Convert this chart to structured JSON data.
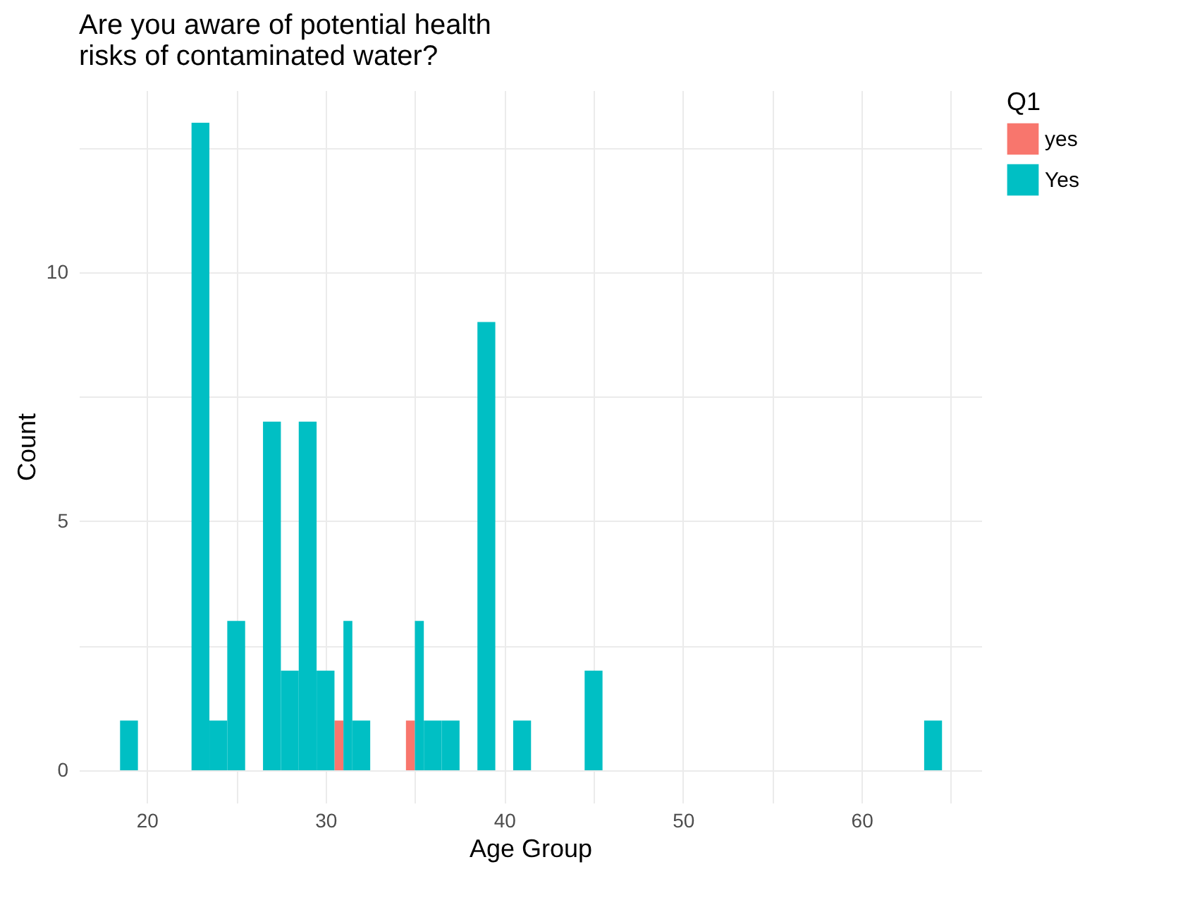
{
  "chart_data": {
    "type": "histogram",
    "title": "Are you aware of potential health\n risks of contaminated water?",
    "xlabel": "Age Group",
    "ylabel": "Count",
    "legend_title": "Q1",
    "legend": "right",
    "grid": true,
    "bins": [
      18.5,
      19.5,
      20.5,
      21.5,
      22.5,
      23.5,
      24.5,
      25.5,
      26.5,
      27.5,
      28.5,
      29.5,
      30.5,
      31.5,
      32.5,
      33.5,
      34.5,
      35.5,
      36.5,
      37.5,
      38.5,
      39.5,
      40.5,
      41.5,
      42.5,
      43.5,
      44.5,
      45.5,
      46.5,
      47.5,
      48.5,
      49.5,
      50.5,
      51.5,
      52.5,
      53.5,
      54.5,
      55.5,
      56.5,
      57.5,
      58.5,
      59.5,
      60.5,
      61.5,
      62.5,
      63.5,
      64.5
    ],
    "series": [
      {
        "name": "yes",
        "color": "#f8766d",
        "values": [
          0,
          0,
          0,
          0,
          0,
          0,
          0,
          0,
          0,
          0,
          0,
          0,
          1,
          0,
          0,
          0,
          1,
          0,
          0,
          0,
          0,
          0,
          0,
          0,
          0,
          0,
          0,
          0,
          0,
          0,
          0,
          0,
          0,
          0,
          0,
          0,
          0,
          0,
          0,
          0,
          0,
          0,
          0,
          0,
          0,
          0
        ]
      },
      {
        "name": "Yes",
        "color": "#00bfc4",
        "values": [
          1,
          0,
          0,
          0,
          13,
          1,
          3,
          0,
          7,
          2,
          7,
          2,
          3,
          1,
          0,
          0,
          3,
          1,
          1,
          0,
          9,
          0,
          1,
          0,
          0,
          0,
          2,
          0,
          0,
          0,
          0,
          0,
          0,
          0,
          0,
          0,
          0,
          0,
          0,
          0,
          0,
          0,
          0,
          0,
          0,
          1
        ]
      }
    ],
    "xlim": [
      16.2,
      66.7
    ],
    "xticks": [
      20,
      {
        "value": 25,
        "label": null
      },
      30,
      {
        "value": 35,
        "label": null
      },
      40,
      {
        "value": 45,
        "label": null
      },
      50,
      {
        "value": 55,
        "label": null
      },
      60,
      {
        "value": 65,
        "label": null
      }
    ],
    "ylim": [
      -0.65,
      13.65
    ],
    "yticks": [
      0,
      {
        "value": 2.5,
        "label": null
      },
      5,
      {
        "value": 7.5,
        "label": null
      },
      10,
      {
        "value": 12.5,
        "label": null
      }
    ]
  }
}
